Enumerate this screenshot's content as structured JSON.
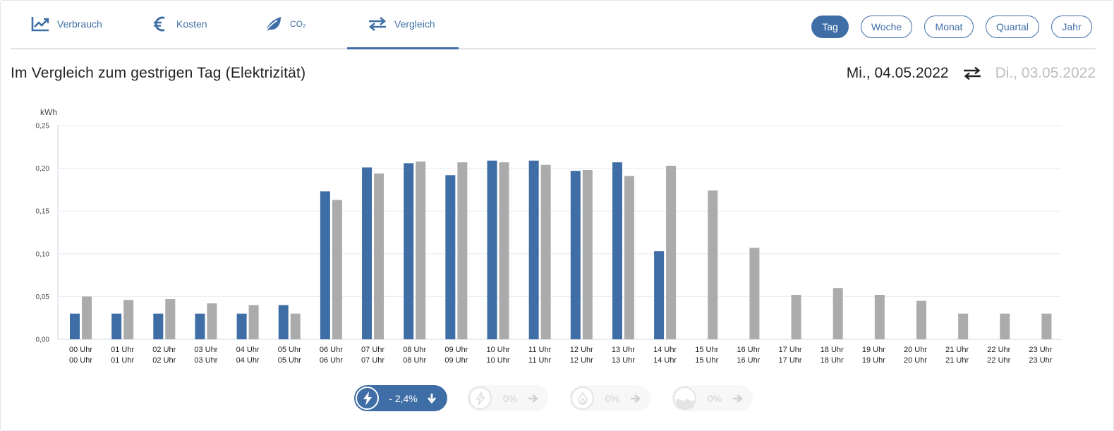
{
  "tabs": [
    {
      "label": "Verbrauch",
      "icon": "line-chart-icon"
    },
    {
      "label": "Kosten",
      "icon": "euro-icon"
    },
    {
      "label": "CO₂",
      "icon": "leaf-icon"
    },
    {
      "label": "Vergleich",
      "icon": "swap-arrows-icon"
    }
  ],
  "active_tab": "Vergleich",
  "periods": [
    "Tag",
    "Woche",
    "Monat",
    "Quartal",
    "Jahr"
  ],
  "active_period": "Tag",
  "heading": "Im Vergleich zum gestrigen Tag (Elektrizität)",
  "date_current": "Mi., 04.05.2022",
  "date_compare": "Di., 03.05.2022",
  "colors": {
    "primary": "#3f6ea6",
    "compare": "#ababab",
    "disabled": "#d0d0d0"
  },
  "badges": [
    {
      "value": "- 2,4%",
      "icon": "electricity-icon",
      "arrow": "arrow-down-icon",
      "active": true
    },
    {
      "value": "0%",
      "icon": "electricity-icon",
      "arrow": "arrow-right-icon",
      "active": false
    },
    {
      "value": "0%",
      "icon": "flame-icon",
      "arrow": "arrow-right-icon",
      "active": false
    },
    {
      "value": "0%",
      "icon": "water-icon",
      "arrow": "arrow-right-icon",
      "active": false
    }
  ],
  "chart_data": {
    "type": "bar",
    "ylabel": "kWh",
    "ylim": [
      0,
      0.25
    ],
    "yticks": [
      "0,00",
      "0,05",
      "0,10",
      "0,15",
      "0,20",
      "0,25"
    ],
    "yticks_values": [
      0,
      0.05,
      0.1,
      0.15,
      0.2,
      0.25
    ],
    "grid": true,
    "categories": [
      "00 Uhr",
      "01 Uhr",
      "02 Uhr",
      "03 Uhr",
      "04 Uhr",
      "05 Uhr",
      "06 Uhr",
      "07 Uhr",
      "08 Uhr",
      "09 Uhr",
      "10 Uhr",
      "11 Uhr",
      "12 Uhr",
      "13 Uhr",
      "14 Uhr",
      "15 Uhr",
      "16 Uhr",
      "17 Uhr",
      "18 Uhr",
      "19 Uhr",
      "20 Uhr",
      "21 Uhr",
      "22 Uhr",
      "23 Uhr"
    ],
    "series": [
      {
        "color": "#3f6ea6",
        "values": [
          0.03,
          0.03,
          0.03,
          0.03,
          0.03,
          0.04,
          0.173,
          0.201,
          0.206,
          0.192,
          0.209,
          0.209,
          0.197,
          0.207,
          0.103,
          null,
          null,
          null,
          null,
          null,
          null,
          null,
          null,
          null
        ]
      },
      {
        "color": "#ababab",
        "values": [
          0.05,
          0.046,
          0.047,
          0.042,
          0.04,
          0.03,
          0.163,
          0.194,
          0.208,
          0.207,
          0.207,
          0.204,
          0.198,
          0.191,
          0.203,
          0.174,
          0.107,
          0.052,
          0.06,
          0.052,
          0.045,
          0.03,
          0.03,
          0.03
        ]
      }
    ]
  }
}
